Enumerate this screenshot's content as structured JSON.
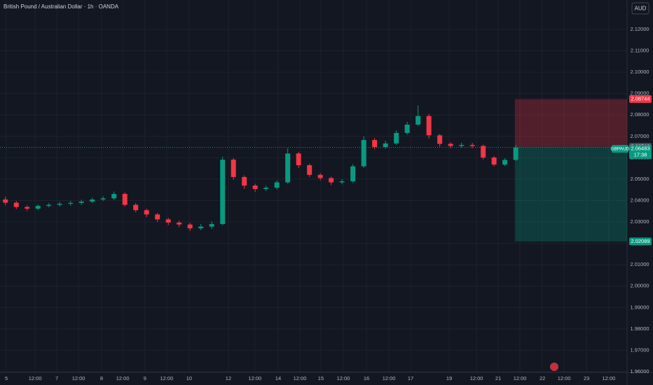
{
  "chart_data": {
    "type": "candlestick",
    "title": "British Pound / Australian Dollar · 1h · OANDA",
    "currency": "AUD",
    "up_color": "#089981",
    "down_color": "#f23645",
    "grid": true,
    "x": [
      3,
      9,
      15,
      21,
      27,
      33,
      39,
      45,
      51,
      57,
      63,
      69,
      75,
      81,
      87,
      93,
      99,
      105,
      111,
      117,
      123,
      129,
      135,
      141,
      147,
      153,
      159,
      165,
      171,
      177,
      183,
      189,
      195,
      201,
      207,
      213,
      219,
      225,
      231,
      237,
      243,
      249,
      255,
      261,
      267,
      273,
      279,
      285
    ],
    "open": [
      2.0405,
      2.039,
      2.037,
      2.0362,
      2.0375,
      2.038,
      2.0385,
      2.0389,
      2.0395,
      2.0405,
      2.041,
      2.0431,
      2.038,
      2.0355,
      2.0335,
      2.0312,
      2.0297,
      2.0288,
      2.027,
      2.0278,
      2.029,
      2.0591,
      2.051,
      2.047,
      2.0454,
      2.046,
      2.0485,
      2.062,
      2.0565,
      2.052,
      2.0505,
      2.0485,
      2.049,
      2.056,
      2.0683,
      2.065,
      2.0667,
      2.0716,
      2.0755,
      2.0795,
      2.0705,
      2.0665,
      2.0655,
      2.066,
      2.0655,
      2.0601,
      2.0568,
      2.059
    ],
    "high": [
      2.0418,
      2.0398,
      2.0378,
      2.0382,
      2.0388,
      2.0394,
      2.0398,
      2.0404,
      2.0414,
      2.042,
      2.0442,
      2.0438,
      2.0388,
      2.0362,
      2.0342,
      2.032,
      2.0306,
      2.0296,
      2.029,
      2.0302,
      2.0605,
      2.0598,
      2.0518,
      2.0478,
      2.047,
      2.0495,
      2.0645,
      2.0628,
      2.0572,
      2.0528,
      2.0512,
      2.05,
      2.057,
      2.07,
      2.0692,
      2.068,
      2.0728,
      2.0768,
      2.0845,
      2.0805,
      2.0712,
      2.0672,
      2.067,
      2.067,
      2.0662,
      2.0608,
      2.0598,
      2.066
    ],
    "low": [
      2.0378,
      2.036,
      2.0352,
      2.0355,
      2.0368,
      2.0372,
      2.0376,
      2.038,
      2.0388,
      2.0398,
      2.0402,
      2.0372,
      2.0345,
      2.0322,
      2.03,
      2.0285,
      2.0276,
      2.0258,
      2.0262,
      2.0268,
      2.0285,
      2.0498,
      2.0455,
      2.044,
      2.0445,
      2.0452,
      2.0478,
      2.0552,
      2.051,
      2.0495,
      2.0472,
      2.0476,
      2.0482,
      2.0552,
      2.064,
      2.0642,
      2.066,
      2.0708,
      2.0748,
      2.069,
      2.0652,
      2.0645,
      2.0646,
      2.0645,
      2.0592,
      2.056,
      2.0562,
      2.0585
    ],
    "close": [
      2.039,
      2.037,
      2.0362,
      2.0375,
      2.038,
      2.0385,
      2.0389,
      2.0395,
      2.0405,
      2.041,
      2.0431,
      2.038,
      2.0355,
      2.0335,
      2.0312,
      2.0297,
      2.0288,
      2.027,
      2.0278,
      2.029,
      2.0591,
      2.051,
      2.047,
      2.0454,
      2.046,
      2.0485,
      2.062,
      2.0565,
      2.052,
      2.0505,
      2.0485,
      2.049,
      2.056,
      2.0683,
      2.065,
      2.0667,
      2.0716,
      2.0755,
      2.0795,
      2.0705,
      2.0665,
      2.0655,
      2.066,
      2.0655,
      2.0601,
      2.0568,
      2.059,
      2.0648
    ],
    "xlim": [
      0,
      346.5
    ],
    "xticks": [
      {
        "value": 3.5,
        "label": "5"
      },
      {
        "value": 19.4,
        "label": "12:00"
      },
      {
        "value": 31.4,
        "label": "7"
      },
      {
        "value": 43.4,
        "label": "12:00"
      },
      {
        "value": 56.1,
        "label": "8"
      },
      {
        "value": 67.8,
        "label": "12:00"
      },
      {
        "value": 80.1,
        "label": "9"
      },
      {
        "value": 92.1,
        "label": "12:00"
      },
      {
        "value": 104.5,
        "label": "10"
      },
      {
        "value": 126.2,
        "label": "12"
      },
      {
        "value": 140.9,
        "label": "12:00"
      },
      {
        "value": 153.7,
        "label": "14"
      },
      {
        "value": 165.7,
        "label": "12:00"
      },
      {
        "value": 177.3,
        "label": "15"
      },
      {
        "value": 189.7,
        "label": "12:00"
      },
      {
        "value": 202.5,
        "label": "16"
      },
      {
        "value": 214.9,
        "label": "12:00"
      },
      {
        "value": 226.9,
        "label": "17"
      },
      {
        "value": 248.2,
        "label": "19"
      },
      {
        "value": 263.3,
        "label": "12:00"
      },
      {
        "value": 275.3,
        "label": "21"
      },
      {
        "value": 287.3,
        "label": "12:00"
      },
      {
        "value": 299.7,
        "label": "22"
      },
      {
        "value": 311.7,
        "label": "12:00"
      },
      {
        "value": 324.1,
        "label": "23"
      },
      {
        "value": 336.4,
        "label": "12:00"
      }
    ],
    "ylim": [
      1.96,
      2.13374
    ],
    "yticks": [
      {
        "value": 1.96,
        "label": "1.96000"
      },
      {
        "value": 1.97,
        "label": "1.97000"
      },
      {
        "value": 1.98,
        "label": "1.98000"
      },
      {
        "value": 1.99,
        "label": "1.99000"
      },
      {
        "value": 2.0,
        "label": "2.00000"
      },
      {
        "value": 2.01,
        "label": "2.01000"
      },
      {
        "value": 2.02,
        "label": "2.02000"
      },
      {
        "value": 2.03,
        "label": "2.03000"
      },
      {
        "value": 2.04,
        "label": "2.04000"
      },
      {
        "value": 2.05,
        "label": "2.05000"
      },
      {
        "value": 2.06,
        "label": "2.06000"
      },
      {
        "value": 2.07,
        "label": "2.07000"
      },
      {
        "value": 2.08,
        "label": "2.08000"
      },
      {
        "value": 2.09,
        "label": "2.09000"
      },
      {
        "value": 2.1,
        "label": "2.10000"
      },
      {
        "value": 2.11,
        "label": "2.11000"
      },
      {
        "value": 2.12,
        "label": "2.12000"
      }
    ],
    "position": {
      "x_start": 284.5,
      "entry": 2.06512,
      "stop": 2.08744,
      "target": 2.02089
    },
    "last_price": 2.06483,
    "symbol": "GBPAUD",
    "countdown": "17:38"
  }
}
